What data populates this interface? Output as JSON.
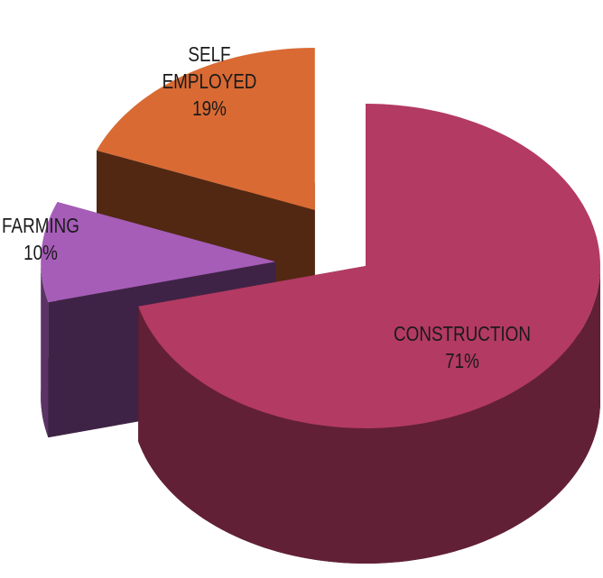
{
  "chart_data": {
    "type": "pie",
    "categories": [
      "CONSTRUCTION",
      "FARMING",
      "SELF EMPLOYED"
    ],
    "values": [
      71,
      10,
      19
    ],
    "value_labels": [
      "71%",
      "10%",
      "19%"
    ],
    "colors": [
      "#b33a62",
      "#a65db8",
      "#d96a33"
    ]
  }
}
